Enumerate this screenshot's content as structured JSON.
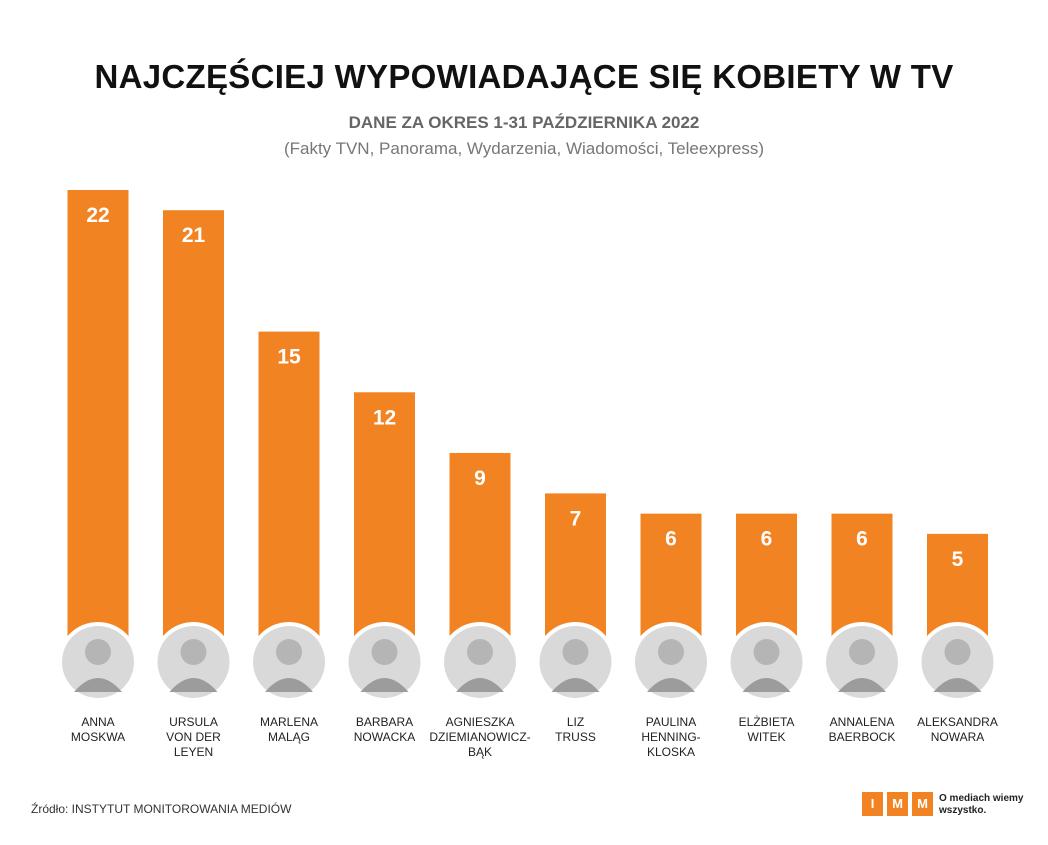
{
  "header": {
    "title": "NAJCZĘŚCIEJ WYPOWIADAJĄCE SIĘ KOBIETY W TV",
    "subtitle": "DANE ZA OKRES 1-31 PAŹDZIERNIKA 2022",
    "note": "(Fakty TVN, Panorama, Wydarzenia, Wiadomości, Teleexpress)"
  },
  "chart_data": {
    "type": "bar",
    "title": "NAJCZĘŚCIEJ WYPOWIADAJĄCE SIĘ KOBIETY W TV",
    "subtitle": "DANE ZA OKRES 1-31 PAŹDZIERNIKA 2022",
    "categories": [
      [
        "ANNA",
        "MOSKWA"
      ],
      [
        "URSULA",
        "VON DER",
        "LEYEN"
      ],
      [
        "MARLENA",
        "MALĄG"
      ],
      [
        "BARBARA",
        "NOWACKA"
      ],
      [
        "AGNIESZKA",
        "DZIEMIANOWICZ-",
        "BĄK"
      ],
      [
        "LIZ",
        "TRUSS"
      ],
      [
        "PAULINA",
        "HENNING-",
        "KLOSKA"
      ],
      [
        "ELŻBIETA",
        "WITEK"
      ],
      [
        "ANNALENA",
        "BAERBOCK"
      ],
      [
        "ALEKSANDRA",
        "NOWARA"
      ]
    ],
    "values": [
      22,
      21,
      15,
      12,
      9,
      7,
      6,
      6,
      6,
      5
    ],
    "xlabel": "",
    "ylabel": "",
    "ylim": [
      0,
      22
    ],
    "grid": false,
    "legend": "none",
    "bar_color": "#F28322",
    "label_color": "#ffffff"
  },
  "footer": {
    "source": "Źródło: INSTYTUT MONITOROWANIA MEDIÓW",
    "logo_letters": [
      "I",
      "M",
      "M"
    ],
    "logo_tagline": "O mediach wiemy wszystko.",
    "logo_color": "#F28322"
  }
}
